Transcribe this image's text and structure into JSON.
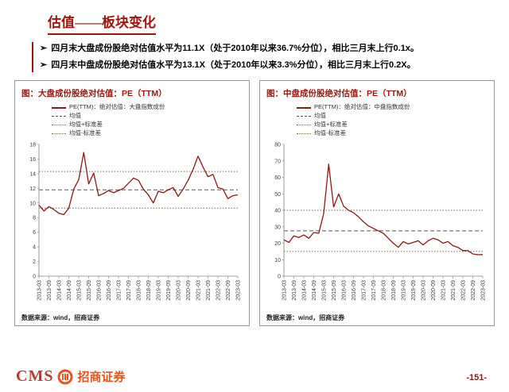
{
  "page": {
    "title": "估值——板块变化",
    "bullet_marker": "➢",
    "page_number": "-151-"
  },
  "bullets": [
    {
      "text": "四月末大盘成份股绝对估值水平为11.1X（处于2010年以来36.7%分位），相比三月末上行0.1x。"
    },
    {
      "text": "四月末中盘成份股绝对估值水平为13.1X（处于2010年以来3.3%分位），相比三月末上行0.2X。"
    }
  ],
  "footer": {
    "logo_cms": "CMS",
    "logo_cn": "招商证券"
  },
  "colors": {
    "series": "#8B1A12",
    "mean": "#595959",
    "std": "#6E6E46",
    "accent": "#A2150A",
    "logo_orange": "#E8541E",
    "cms_red": "#C0392B"
  },
  "charts": [
    {
      "title": "图：大盘成份股绝对估值：PE（TTM）",
      "source": "数据来源：wind，招商证券",
      "legend": [
        {
          "label": "PE(TTM)：绝对估值：大盘指数成份",
          "marker": "solid-red"
        },
        {
          "label": "均值",
          "marker": "dashed"
        },
        {
          "label": "均值+标准差",
          "marker": "dotted"
        },
        {
          "label": "均值-标准差",
          "marker": "dotted"
        }
      ],
      "chart_data": {
        "type": "line",
        "title": "大盘成份股绝对估值 PE(TTM)",
        "x_tick_labels": [
          "2013-03",
          "2013-09",
          "2014-03",
          "2014-09",
          "2015-03",
          "2015-09",
          "2016-03",
          "2016-09",
          "2017-03",
          "2017-09",
          "2018-03",
          "2018-09",
          "2019-03",
          "2019-09",
          "2020-03",
          "2020-09",
          "2021-03",
          "2021-09",
          "2022-03",
          "2022-09",
          "2023-03"
        ],
        "ylim": [
          0,
          18
        ],
        "ytick_step": 2,
        "mean": 11.8,
        "mean_plus_std": 14.3,
        "mean_minus_std": 9.3,
        "series": [
          {
            "name": "PE(TTM) 大盘指数成份",
            "values": [
              9.7,
              8.9,
              9.5,
              9.1,
              8.6,
              8.4,
              9.3,
              11.9,
              13.2,
              16.9,
              12.6,
              14.1,
              11.0,
              11.3,
              11.7,
              11.4,
              11.7,
              12.0,
              12.7,
              13.4,
              13.1,
              11.9,
              11.1,
              10.0,
              11.6,
              11.4,
              11.8,
              12.1,
              10.9,
              11.9,
              13.1,
              14.6,
              16.4,
              14.9,
              13.6,
              13.9,
              12.1,
              11.9,
              10.6,
              11.0,
              11.1
            ]
          }
        ]
      }
    },
    {
      "title": "图：中盘成份股绝对估值：PE（TTM）",
      "source": "数据来源：wind，招商证券",
      "legend": [
        {
          "label": "PE(TTM)：绝对估值：中盘指数成份",
          "marker": "solid-red"
        },
        {
          "label": "均值",
          "marker": "dashed"
        },
        {
          "label": "均值+标准差",
          "marker": "dotted"
        },
        {
          "label": "均值-标准差",
          "marker": "dotted"
        }
      ],
      "chart_data": {
        "type": "line",
        "title": "中盘成份股绝对估值 PE(TTM)",
        "x_tick_labels": [
          "2013-03",
          "2013-09",
          "2014-03",
          "2014-09",
          "2015-03",
          "2015-09",
          "2016-03",
          "2016-09",
          "2017-03",
          "2017-09",
          "2018-03",
          "2018-09",
          "2019-03",
          "2019-09",
          "2020-03",
          "2020-09",
          "2021-03",
          "2021-09",
          "2022-03",
          "2022-09",
          "2023-03"
        ],
        "ylim": [
          0,
          80
        ],
        "ytick_step": 10,
        "mean": 27.5,
        "mean_plus_std": 40.0,
        "mean_minus_std": 15.0,
        "series": [
          {
            "name": "PE(TTM) 中盘指数成份",
            "values": [
              22.0,
              20.5,
              24.5,
              23.5,
              25.0,
              23.0,
              26.5,
              26.0,
              38.0,
              68.0,
              42.0,
              50.0,
              42.5,
              40.0,
              38.5,
              36.0,
              33.0,
              30.5,
              29.0,
              27.5,
              26.0,
              23.0,
              20.0,
              17.5,
              21.0,
              19.5,
              20.5,
              21.5,
              19.0,
              21.5,
              23.0,
              22.0,
              20.0,
              21.0,
              18.5,
              17.5,
              15.5,
              15.5,
              13.5,
              13.0,
              13.1
            ]
          }
        ]
      }
    }
  ]
}
